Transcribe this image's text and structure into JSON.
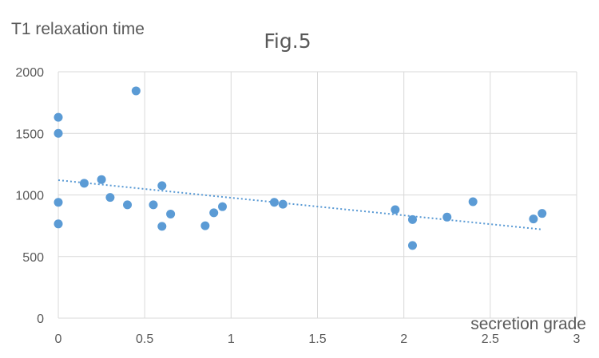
{
  "chart_data": {
    "type": "scatter",
    "title": "Fig.5",
    "xlabel": "secretion grade",
    "ylabel": "T1 relaxation time",
    "xlim": [
      0,
      3
    ],
    "ylim": [
      0,
      2000
    ],
    "x_ticks": [
      "0",
      "0.5",
      "1",
      "1.5",
      "2",
      "2.5",
      "3"
    ],
    "y_ticks": [
      "0",
      "500",
      "1000",
      "1500",
      "2000"
    ],
    "grid": true,
    "legend": "none",
    "series": [
      {
        "color": "#5b9bd5",
        "points": [
          {
            "x": 0,
            "y": 1630
          },
          {
            "x": 0,
            "y": 1500
          },
          {
            "x": 0,
            "y": 940
          },
          {
            "x": 0,
            "y": 765
          },
          {
            "x": 0.15,
            "y": 1095
          },
          {
            "x": 0.25,
            "y": 1125
          },
          {
            "x": 0.3,
            "y": 980
          },
          {
            "x": 0.4,
            "y": 920
          },
          {
            "x": 0.45,
            "y": 1845
          },
          {
            "x": 0.55,
            "y": 920
          },
          {
            "x": 0.6,
            "y": 1075
          },
          {
            "x": 0.6,
            "y": 745
          },
          {
            "x": 0.65,
            "y": 845
          },
          {
            "x": 0.85,
            "y": 750
          },
          {
            "x": 0.9,
            "y": 855
          },
          {
            "x": 0.95,
            "y": 905
          },
          {
            "x": 1.25,
            "y": 940
          },
          {
            "x": 1.3,
            "y": 925
          },
          {
            "x": 1.95,
            "y": 880
          },
          {
            "x": 2.05,
            "y": 800
          },
          {
            "x": 2.05,
            "y": 590
          },
          {
            "x": 2.25,
            "y": 820
          },
          {
            "x": 2.4,
            "y": 945
          },
          {
            "x": 2.75,
            "y": 805
          },
          {
            "x": 2.8,
            "y": 850
          }
        ]
      }
    ],
    "trendline": {
      "type": "linear",
      "style": "dotted",
      "color": "#5b9bd5",
      "from": {
        "x": 0,
        "y": 1120
      },
      "to": {
        "x": 2.8,
        "y": 720
      }
    }
  }
}
